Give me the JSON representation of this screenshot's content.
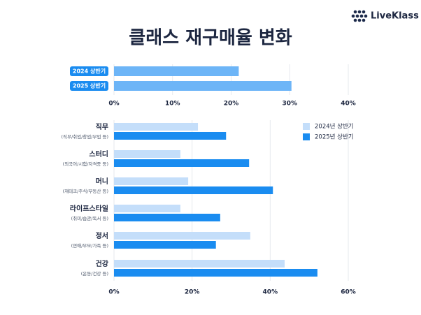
{
  "header": {
    "logo": "LiveKlass",
    "title": "클래스 재구매율 변화"
  },
  "chart_data": [
    {
      "type": "bar",
      "categories": [
        "2024 상반기",
        "2025 상반기"
      ],
      "values": [
        21.3,
        30.3
      ],
      "color": "#6db5f7",
      "xlim": [
        0,
        40
      ],
      "xticks": [
        {
          "value": 0,
          "label": "0%"
        },
        {
          "value": 10,
          "label": "10%"
        },
        {
          "value": 20,
          "label": "20%"
        },
        {
          "value": 30,
          "label": "30%"
        },
        {
          "value": 40,
          "label": "40%"
        }
      ],
      "grid": true
    },
    {
      "type": "bar",
      "categories": [
        "직무",
        "스터디",
        "머니",
        "라이프스타일",
        "정서",
        "건강"
      ],
      "category_notes": [
        "(직무/취업/창업/부업 등)",
        "(외국어/시험/자격증 등)",
        "(재테크/주식/부동산 등)",
        "(취미/습관/독서 등)",
        "(연애/부모/가족 등)",
        "(운동/건강 등)"
      ],
      "series": [
        {
          "name": "2024년 상반기",
          "color": "#c4defa",
          "values": [
            21.5,
            17.0,
            19.0,
            17.0,
            34.9,
            43.7
          ]
        },
        {
          "name": "2025년 상반기",
          "color": "#1a8cf0",
          "values": [
            28.7,
            34.6,
            40.7,
            27.2,
            26.1,
            52.1
          ]
        }
      ],
      "xlim": [
        0,
        60
      ],
      "xticks": [
        {
          "value": 0,
          "label": "0%"
        },
        {
          "value": 20,
          "label": "20%"
        },
        {
          "value": 40,
          "label": "40%"
        },
        {
          "value": 60,
          "label": "60%"
        }
      ],
      "grid": true,
      "legend": "top-right"
    }
  ]
}
